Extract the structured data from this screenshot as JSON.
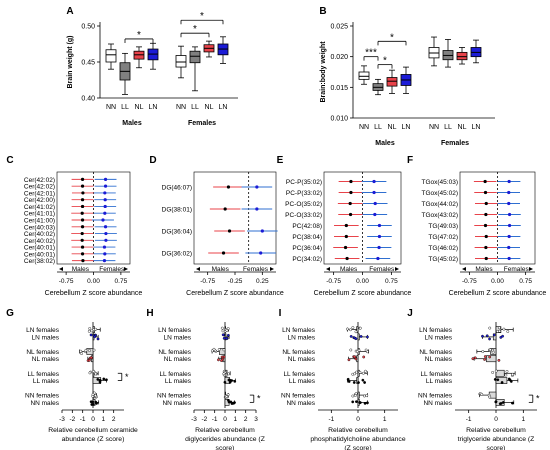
{
  "colors": {
    "NN": "#ffffff",
    "LL": "#808080",
    "NL": "#e8434a",
    "LN": "#1b1bd6",
    "male_dot": "#000000",
    "female_dot": "#ffffff"
  },
  "chart_data": [
    {
      "panel": "A",
      "type": "box",
      "ylabel": "Brain weight (g)",
      "ylim": [
        0.4,
        0.5
      ],
      "yticks": [
        "0.40",
        "0.45",
        "0.50"
      ],
      "groups": [
        {
          "name": "Males",
          "boxes": [
            {
              "label": "NN",
              "q1": 0.45,
              "median": 0.46,
              "q3": 0.467,
              "min": 0.44,
              "max": 0.475
            },
            {
              "label": "LL",
              "q1": 0.425,
              "median": 0.437,
              "q3": 0.449,
              "min": 0.405,
              "max": 0.462
            },
            {
              "label": "NL",
              "q1": 0.454,
              "median": 0.46,
              "q3": 0.465,
              "min": 0.442,
              "max": 0.471
            },
            {
              "label": "LN",
              "q1": 0.453,
              "median": 0.461,
              "q3": 0.468,
              "min": 0.44,
              "max": 0.476
            }
          ]
        },
        {
          "name": "Females",
          "boxes": [
            {
              "label": "NN",
              "q1": 0.443,
              "median": 0.45,
              "q3": 0.459,
              "min": 0.428,
              "max": 0.472
            },
            {
              "label": "LL",
              "q1": 0.449,
              "median": 0.458,
              "q3": 0.465,
              "min": 0.41,
              "max": 0.471
            },
            {
              "label": "NL",
              "q1": 0.464,
              "median": 0.469,
              "q3": 0.474,
              "min": 0.457,
              "max": 0.479
            },
            {
              "label": "LN",
              "q1": 0.46,
              "median": 0.468,
              "q3": 0.475,
              "min": 0.448,
              "max": 0.485
            }
          ]
        }
      ],
      "significance": [
        {
          "group": 0,
          "from": 1,
          "to": 3,
          "y": 0.482,
          "label": "*"
        },
        {
          "group": 1,
          "from": 0,
          "to": 3,
          "y": 0.508,
          "label": "*"
        },
        {
          "group": 1,
          "from": 0,
          "to": 2,
          "y": 0.49,
          "label": "*"
        }
      ]
    },
    {
      "panel": "B",
      "type": "box",
      "ylabel": "Brain:body weight",
      "ylim": [
        0.01,
        0.025
      ],
      "yticks": [
        "0.010",
        "0.015",
        "0.020",
        "0.025"
      ],
      "groups": [
        {
          "name": "Males",
          "boxes": [
            {
              "label": "NN",
              "q1": 0.0163,
              "median": 0.0168,
              "q3": 0.0175,
              "min": 0.0155,
              "max": 0.0185
            },
            {
              "label": "LL",
              "q1": 0.0145,
              "median": 0.015,
              "q3": 0.0156,
              "min": 0.0138,
              "max": 0.0163
            },
            {
              "label": "NL",
              "q1": 0.0152,
              "median": 0.016,
              "q3": 0.0166,
              "min": 0.014,
              "max": 0.0178
            },
            {
              "label": "LN",
              "q1": 0.0153,
              "median": 0.0162,
              "q3": 0.0171,
              "min": 0.014,
              "max": 0.0183
            }
          ]
        },
        {
          "name": "Females",
          "boxes": [
            {
              "label": "NN",
              "q1": 0.0198,
              "median": 0.0206,
              "q3": 0.0215,
              "min": 0.0185,
              "max": 0.0232
            },
            {
              "label": "LL",
              "q1": 0.0195,
              "median": 0.0202,
              "q3": 0.021,
              "min": 0.0183,
              "max": 0.0228
            },
            {
              "label": "NL",
              "q1": 0.0195,
              "median": 0.02,
              "q3": 0.0207,
              "min": 0.0188,
              "max": 0.0215
            },
            {
              "label": "LN",
              "q1": 0.02,
              "median": 0.0207,
              "q3": 0.0215,
              "min": 0.019,
              "max": 0.0227
            }
          ]
        }
      ],
      "significance": [
        {
          "group": 0,
          "from": 0,
          "to": 1,
          "y": 0.02,
          "label": "***"
        },
        {
          "group": 0,
          "from": 1,
          "to": 3,
          "y": 0.0225,
          "label": "*"
        },
        {
          "group": 0,
          "from": 1,
          "to": 2,
          "y": 0.0187,
          "label": "*"
        }
      ]
    },
    {
      "panel": "C",
      "type": "forest",
      "xlabel": "Cerebellum Z score abundance",
      "xlim": [
        -1.0,
        1.0
      ],
      "xticks": [
        "-0.75",
        "0.00",
        "0.75"
      ],
      "legend": [
        "Males",
        "Females"
      ],
      "labels": [
        "Cer(42:02)",
        "Cer(42:02)",
        "Cer(42:01)",
        "Cer(42:00)",
        "Cer(41:02)",
        "Cer(41:01)",
        "Cer(41:00)",
        "Cer(40:03)",
        "Cer(40:02)",
        "Cer(40:02)",
        "Cer(40:01)",
        "Cer(40:01)",
        "Cer(38:02)"
      ],
      "males": [
        -0.3,
        -0.3,
        -0.29,
        -0.3,
        -0.3,
        -0.31,
        -0.3,
        -0.3,
        -0.31,
        -0.31,
        -0.3,
        -0.3,
        -0.29
      ],
      "females": [
        0.33,
        0.33,
        0.31,
        0.32,
        0.32,
        0.31,
        0.26,
        0.33,
        0.34,
        0.34,
        0.3,
        0.31,
        0.3
      ],
      "err": 0.3
    },
    {
      "panel": "D",
      "type": "forest",
      "xlabel": "Cerebellum Z score abundance",
      "xlim": [
        -1.0,
        0.5
      ],
      "xticks": [
        "-0.75",
        "-0.25",
        "0.25"
      ],
      "legend": [
        "Males",
        "Females"
      ],
      "labels": [
        "DG(46:07)",
        "DG(38:01)",
        "DG(36:04)",
        "DG(36:02)"
      ],
      "males": [
        -0.37,
        -0.43,
        -0.35,
        -0.46
      ],
      "females": [
        0.15,
        0.15,
        0.25,
        0.22
      ],
      "err": 0.28
    },
    {
      "panel": "E",
      "type": "forest",
      "xlabel": "Cerebellum Z score abundance",
      "xlim": [
        -1.0,
        1.0
      ],
      "xticks": [
        "-0.75",
        "0.00",
        "0.75"
      ],
      "legend": [
        "Males",
        "Females"
      ],
      "labels": [
        "PC-P(35:02)",
        "PC-P(33:02)",
        "PC-O(35:02)",
        "PC-O(33:02)",
        "PC(42:08)",
        "PC(38:04)",
        "PC(36:04)",
        "PC(34:02)"
      ],
      "males": [
        -0.3,
        -0.3,
        -0.32,
        -0.31,
        -0.42,
        -0.42,
        -0.44,
        -0.4
      ],
      "females": [
        0.3,
        0.3,
        0.33,
        0.32,
        0.44,
        0.44,
        0.43,
        0.4
      ],
      "err": 0.32
    },
    {
      "panel": "F",
      "type": "forest",
      "xlabel": "Cerebellum Z score abundance",
      "xlim": [
        -1.0,
        1.0
      ],
      "xticks": [
        "-0.75",
        "0.00",
        "0.75"
      ],
      "legend": [
        "Males",
        "Females"
      ],
      "labels": [
        "TGox(45:03)",
        "TGox(45:02)",
        "TGox(44:02)",
        "TGox(43:02)",
        "TG(49:03)",
        "TG(47:02)",
        "TG(46:02)",
        "TG(45:02)"
      ],
      "males": [
        -0.33,
        -0.32,
        -0.3,
        -0.31,
        -0.32,
        -0.3,
        -0.31,
        -0.3
      ],
      "females": [
        0.31,
        0.3,
        0.3,
        0.32,
        0.32,
        0.31,
        0.3,
        0.31
      ],
      "err": 0.3
    },
    {
      "panel": "G",
      "type": "hbar",
      "xlabel": "Relative cerebellum ceramide abundance (Z score)",
      "xlim": [
        -3,
        3
      ],
      "xticks": [
        "-3",
        "-2",
        "-1",
        "0",
        "1",
        "2"
      ],
      "categories": [
        "LN females",
        "LN males",
        "NL females",
        "NL males",
        "LL females",
        "LL males",
        "NN females",
        "NN males"
      ],
      "values": [
        0.15,
        0.1,
        -0.6,
        -0.15,
        0.1,
        0.75,
        0.1,
        0.2
      ],
      "errors": [
        0.55,
        0.4,
        0.7,
        0.35,
        0.4,
        0.55,
        0.25,
        0.35
      ],
      "significance": [
        {
          "from": 4,
          "to": 5,
          "label": "*"
        }
      ]
    },
    {
      "panel": "H",
      "type": "hbar",
      "xlabel": "Relative cerebellum diglycerides abundance (Z score)",
      "xlim": [
        -3,
        3
      ],
      "xticks": [
        "-3",
        "-2",
        "-1",
        "0",
        "1",
        "2",
        "3"
      ],
      "categories": [
        "LN females",
        "LN males",
        "NL females",
        "NL males",
        "LL females",
        "LL males",
        "NN females",
        "NN males"
      ],
      "values": [
        0.05,
        0.1,
        -0.55,
        -0.2,
        0.2,
        0.45,
        0.05,
        0.4
      ],
      "errors": [
        0.3,
        0.3,
        0.7,
        0.4,
        0.3,
        0.55,
        0.3,
        0.5
      ],
      "significance": [
        {
          "from": 6,
          "to": 7,
          "label": "*"
        }
      ]
    },
    {
      "panel": "I",
      "type": "hbar",
      "xlabel": "Relative cerebellum phosphatidylcholine abundance (Z score)",
      "xlim": [
        -1.5,
        1.5
      ],
      "xticks": [
        "-1",
        "0",
        "1"
      ],
      "categories": [
        "LN females",
        "LN males",
        "NL females",
        "NL males",
        "LL females",
        "LL males",
        "NN females",
        "NN males"
      ],
      "values": [
        -0.05,
        0.05,
        0.05,
        -0.05,
        0.05,
        -0.05,
        0.05,
        0.05
      ],
      "errors": [
        0.35,
        0.3,
        0.35,
        0.3,
        0.3,
        0.35,
        0.3,
        0.3
      ],
      "significance": []
    },
    {
      "panel": "J",
      "type": "hbar",
      "xlabel": "Relative cerebellum triglyceride abundance (Z score)",
      "xlim": [
        -1.5,
        1.5
      ],
      "xticks": [
        "-1",
        "0",
        "1"
      ],
      "categories": [
        "LN females",
        "LN males",
        "NL females",
        "NL males",
        "LL females",
        "LL males",
        "NN females",
        "NN males"
      ],
      "values": [
        0.18,
        -0.1,
        -0.2,
        -0.35,
        0.3,
        0.4,
        -0.25,
        0.3
      ],
      "errors": [
        0.45,
        0.4,
        0.5,
        0.45,
        0.4,
        0.4,
        0.35,
        0.35
      ],
      "significance": [
        {
          "from": 6,
          "to": 7,
          "label": "*"
        }
      ]
    }
  ]
}
